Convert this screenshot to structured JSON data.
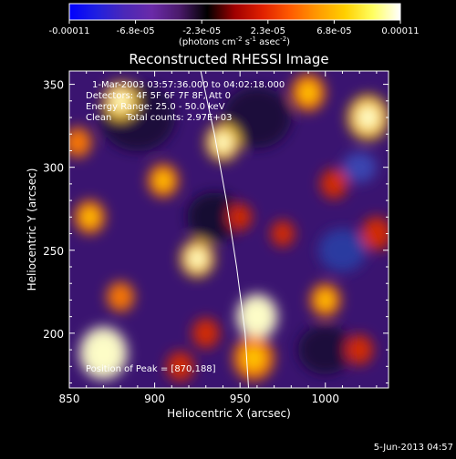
{
  "colorbar": {
    "ticks": [
      "-0.00011",
      "-6.8e-05",
      "-2.3e-05",
      "2.3e-05",
      "6.8e-05",
      "0.00011"
    ],
    "units_label": "(photons cm",
    "units_exp1": "-2",
    "units_mid": " s",
    "units_exp2": "-1",
    "units_end": " asec",
    "units_exp3": "-2",
    "units_close": ")",
    "gradient": [
      "#0000ff",
      "#2020e0",
      "#4b28b8",
      "#6a2aa8",
      "#4a1a6a",
      "#000000",
      "#a00000",
      "#e02000",
      "#ff5a00",
      "#ff9a00",
      "#ffd000",
      "#ffff60",
      "#ffffff"
    ]
  },
  "chart_data": {
    "type": "heatmap",
    "title": "Reconstructed RHESSI Image",
    "xlabel": "Heliocentric X (arcsec)",
    "ylabel": "Heliocentric Y (arcsec)",
    "xlim": [
      850,
      1037
    ],
    "ylim": [
      167,
      358
    ],
    "x_ticks": [
      850,
      900,
      950,
      1000
    ],
    "y_ticks": [
      200,
      250,
      300,
      350
    ],
    "color_range": [
      -0.00011,
      0.00011
    ],
    "peak": [
      870,
      188
    ],
    "annotations": [
      "1-Mar-2003 03:57:36.000 to 04:02:18.000",
      "Detectors: 4F 5F 6F 7F 8F, Att 0",
      "Energy Range: 25.0 - 50.0 keV",
      "Clean     Total counts: 2.97E+03"
    ],
    "peak_label": "Position of Peak = [870,188]",
    "limb_curve": [
      [
        927,
        358
      ],
      [
        935,
        320
      ],
      [
        942,
        280
      ],
      [
        948,
        240
      ],
      [
        953,
        200
      ],
      [
        955,
        167
      ]
    ],
    "blobs": [
      [
        870,
        188,
        1.0,
        14
      ],
      [
        925,
        245,
        0.8,
        10
      ],
      [
        960,
        210,
        0.85,
        12
      ],
      [
        1025,
        330,
        0.75,
        12
      ],
      [
        880,
        340,
        0.7,
        10
      ],
      [
        940,
        315,
        0.8,
        10
      ],
      [
        958,
        185,
        0.6,
        12
      ],
      [
        1000,
        220,
        0.55,
        9
      ],
      [
        905,
        292,
        0.6,
        9
      ],
      [
        862,
        270,
        0.55,
        9
      ],
      [
        990,
        345,
        0.6,
        10
      ],
      [
        1030,
        260,
        0.4,
        9
      ],
      [
        880,
        222,
        0.5,
        8
      ],
      [
        930,
        200,
        0.45,
        8
      ],
      [
        1005,
        290,
        0.4,
        8
      ],
      [
        915,
        180,
        0.4,
        8
      ],
      [
        1020,
        190,
        0.35,
        8
      ],
      [
        975,
        260,
        0.35,
        7
      ],
      [
        855,
        315,
        0.5,
        8
      ],
      [
        950,
        270,
        0.35,
        7
      ]
    ]
  },
  "timestamp": "5-Jun-2013 04:57"
}
